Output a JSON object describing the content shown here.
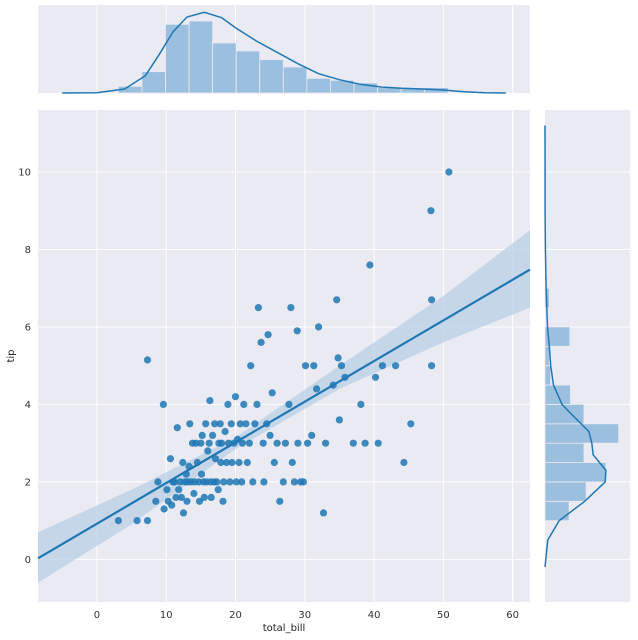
{
  "chart_data": {
    "type": "scatter",
    "title": "",
    "xlabel": "total_bill",
    "ylabel": "tip",
    "xlim": [
      -8.5,
      62.5
    ],
    "ylim": [
      -1.1,
      11.6
    ],
    "xticks": [
      0,
      10,
      20,
      30,
      40,
      50,
      60
    ],
    "yticks": [
      0,
      2,
      4,
      6,
      8,
      10
    ],
    "grid": true,
    "colors": {
      "background": "#eaeaf2",
      "grid": "#ffffff",
      "points": "#1f77b4",
      "hist": "#9bbfde",
      "band": "#b8cfe6"
    },
    "regression": {
      "x_range": [
        -8.5,
        62.5
      ],
      "slope": 0.105,
      "intercept": 0.92,
      "ci_band": [
        {
          "x": -8.5,
          "lo": -0.6,
          "hi": 0.7
        },
        {
          "x": 5,
          "lo": 0.9,
          "hi": 1.8
        },
        {
          "x": 20,
          "lo": 2.85,
          "hi": 3.15
        },
        {
          "x": 35,
          "lo": 4.4,
          "hi": 5.0
        },
        {
          "x": 50,
          "lo": 5.6,
          "hi": 6.8
        },
        {
          "x": 62.5,
          "lo": 6.5,
          "hi": 8.5
        }
      ]
    },
    "points": [
      [
        3.1,
        1.0
      ],
      [
        5.8,
        1.0
      ],
      [
        7.3,
        1.0
      ],
      [
        7.3,
        5.15
      ],
      [
        8.5,
        1.5
      ],
      [
        8.8,
        2.0
      ],
      [
        9.6,
        4.0
      ],
      [
        9.7,
        1.3
      ],
      [
        10.1,
        1.8
      ],
      [
        10.3,
        1.5
      ],
      [
        10.6,
        2.6
      ],
      [
        10.8,
        1.4
      ],
      [
        11.0,
        2.0
      ],
      [
        11.2,
        2.0
      ],
      [
        11.4,
        1.6
      ],
      [
        11.6,
        3.4
      ],
      [
        11.8,
        1.8
      ],
      [
        12.0,
        2.0
      ],
      [
        12.2,
        1.6
      ],
      [
        12.4,
        2.5
      ],
      [
        12.5,
        1.2
      ],
      [
        12.7,
        2.0
      ],
      [
        12.9,
        2.2
      ],
      [
        13.0,
        1.5
      ],
      [
        13.1,
        2.0
      ],
      [
        13.3,
        2.4
      ],
      [
        13.4,
        3.5
      ],
      [
        13.6,
        2.0
      ],
      [
        13.8,
        3.0
      ],
      [
        14.0,
        1.7
      ],
      [
        14.1,
        2.0
      ],
      [
        14.3,
        3.0
      ],
      [
        14.5,
        2.5
      ],
      [
        14.7,
        2.0
      ],
      [
        14.8,
        1.5
      ],
      [
        15.0,
        3.0
      ],
      [
        15.1,
        2.2
      ],
      [
        15.2,
        3.2
      ],
      [
        15.4,
        2.0
      ],
      [
        15.5,
        1.6
      ],
      [
        15.7,
        3.5
      ],
      [
        15.8,
        2.0
      ],
      [
        16.0,
        2.8
      ],
      [
        16.2,
        3.0
      ],
      [
        16.3,
        4.1
      ],
      [
        16.4,
        2.0
      ],
      [
        16.5,
        1.6
      ],
      [
        16.7,
        3.2
      ],
      [
        16.9,
        2.0
      ],
      [
        17.0,
        3.5
      ],
      [
        17.1,
        2.6
      ],
      [
        17.3,
        2.0
      ],
      [
        17.5,
        1.8
      ],
      [
        17.6,
        3.0
      ],
      [
        17.8,
        3.5
      ],
      [
        17.9,
        2.5
      ],
      [
        18.0,
        3.0
      ],
      [
        18.2,
        1.5
      ],
      [
        18.3,
        2.0
      ],
      [
        18.5,
        3.3
      ],
      [
        18.7,
        2.5
      ],
      [
        18.9,
        4.0
      ],
      [
        19.0,
        3.0
      ],
      [
        19.2,
        2.0
      ],
      [
        19.4,
        3.5
      ],
      [
        19.5,
        2.5
      ],
      [
        19.8,
        3.0
      ],
      [
        20.0,
        4.2
      ],
      [
        20.1,
        2.0
      ],
      [
        20.3,
        3.1
      ],
      [
        20.5,
        2.5
      ],
      [
        20.7,
        3.5
      ],
      [
        20.9,
        2.0
      ],
      [
        21.0,
        3.0
      ],
      [
        21.2,
        4.0
      ],
      [
        21.5,
        3.5
      ],
      [
        21.7,
        2.5
      ],
      [
        22.0,
        3.0
      ],
      [
        22.2,
        5.0
      ],
      [
        22.5,
        2.0
      ],
      [
        22.8,
        3.5
      ],
      [
        23.1,
        4.0
      ],
      [
        23.3,
        6.5
      ],
      [
        23.7,
        5.6
      ],
      [
        24.0,
        3.0
      ],
      [
        24.1,
        2.0
      ],
      [
        24.5,
        3.5
      ],
      [
        24.7,
        5.8
      ],
      [
        25.0,
        3.2
      ],
      [
        25.3,
        4.3
      ],
      [
        25.6,
        2.5
      ],
      [
        26.0,
        3.0
      ],
      [
        26.4,
        1.5
      ],
      [
        26.9,
        2.0
      ],
      [
        27.2,
        3.0
      ],
      [
        27.7,
        4.0
      ],
      [
        28.0,
        6.5
      ],
      [
        28.2,
        2.5
      ],
      [
        28.5,
        2.0
      ],
      [
        28.9,
        5.9
      ],
      [
        29.0,
        3.0
      ],
      [
        29.4,
        2.0
      ],
      [
        29.8,
        2.0
      ],
      [
        30.1,
        5.0
      ],
      [
        30.4,
        3.0
      ],
      [
        31.0,
        3.2
      ],
      [
        31.3,
        5.0
      ],
      [
        31.7,
        4.4
      ],
      [
        32.0,
        6.0
      ],
      [
        32.7,
        1.2
      ],
      [
        33.0,
        3.0
      ],
      [
        34.1,
        4.5
      ],
      [
        34.6,
        6.7
      ],
      [
        34.8,
        5.2
      ],
      [
        35.0,
        3.6
      ],
      [
        35.3,
        5.0
      ],
      [
        35.8,
        4.7
      ],
      [
        37.0,
        3.0
      ],
      [
        38.1,
        4.0
      ],
      [
        38.7,
        3.0
      ],
      [
        39.4,
        7.6
      ],
      [
        40.2,
        4.7
      ],
      [
        40.6,
        3.0
      ],
      [
        41.2,
        5.0
      ],
      [
        43.1,
        5.0
      ],
      [
        44.3,
        2.5
      ],
      [
        45.3,
        3.5
      ],
      [
        48.2,
        9.0
      ],
      [
        48.3,
        6.7
      ],
      [
        48.3,
        5.0
      ],
      [
        50.8,
        10.0
      ]
    ],
    "x_hist": {
      "bin_edges": [
        3.1,
        6.5,
        9.9,
        13.3,
        16.7,
        20.1,
        23.5,
        26.9,
        30.3,
        33.7,
        37.1,
        40.5,
        43.9,
        47.3,
        50.7
      ],
      "counts": [
        1,
        3.2,
        10.3,
        10.8,
        7.5,
        6.3,
        5.0,
        3.9,
        2.2,
        1.9,
        1.5,
        0.8,
        0.7,
        0.8
      ]
    },
    "x_kde": [
      [
        -5,
        0
      ],
      [
        0,
        0.05
      ],
      [
        4,
        0.6
      ],
      [
        7,
        2.6
      ],
      [
        9,
        5.8
      ],
      [
        11,
        9.2
      ],
      [
        13,
        11.4
      ],
      [
        15.5,
        12.1
      ],
      [
        18,
        11.3
      ],
      [
        20,
        9.8
      ],
      [
        23,
        7.8
      ],
      [
        26,
        6.1
      ],
      [
        29,
        4.4
      ],
      [
        32,
        2.9
      ],
      [
        35,
        2.0
      ],
      [
        38,
        1.3
      ],
      [
        41,
        0.9
      ],
      [
        44,
        0.7
      ],
      [
        47,
        0.6
      ],
      [
        50,
        0.45
      ],
      [
        53,
        0.2
      ],
      [
        56,
        0.05
      ],
      [
        59,
        0
      ]
    ],
    "y_hist": {
      "bin_edges": [
        1.0,
        1.5,
        2.0,
        2.5,
        3.0,
        3.5,
        4.0,
        4.5,
        5.0,
        5.5,
        6.0,
        6.5,
        7.0
      ],
      "counts": [
        3.4,
        5.8,
        8.6,
        5.5,
        10.4,
        5.5,
        3.6,
        0.8,
        0.6,
        3.5,
        0,
        0.6
      ]
    },
    "y_kde": [
      [
        -0.2,
        0
      ],
      [
        0.5,
        0.4
      ],
      [
        1.0,
        2.0
      ],
      [
        1.5,
        5.6
      ],
      [
        2.0,
        8.5
      ],
      [
        2.3,
        8.6
      ],
      [
        2.7,
        6.8
      ],
      [
        3.0,
        6.6
      ],
      [
        3.3,
        6.2
      ],
      [
        3.7,
        4.0
      ],
      [
        4.0,
        2.4
      ],
      [
        4.5,
        1.2
      ],
      [
        5.0,
        0.8
      ],
      [
        5.5,
        0.6
      ],
      [
        6.0,
        0.35
      ],
      [
        7.0,
        0.15
      ],
      [
        8.0,
        0.05
      ],
      [
        9.0,
        0.02
      ],
      [
        10.0,
        0.01
      ],
      [
        11.2,
        0
      ]
    ]
  }
}
